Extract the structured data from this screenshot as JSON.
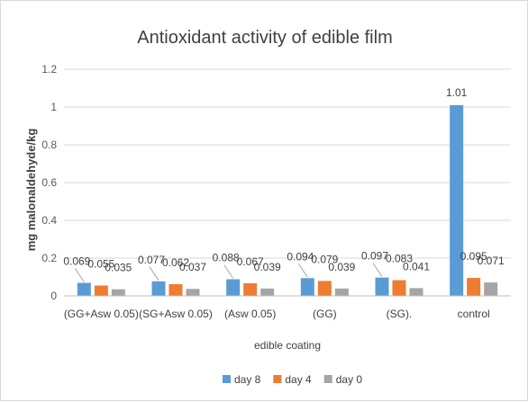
{
  "chart_data": {
    "type": "bar",
    "title": "Antioxidant activity of edible film",
    "xlabel": "edible coating",
    "ylabel": "mg malonaldehyde/kg",
    "categories": [
      "(GG+Asw 0.05)",
      "(SG+Asw 0.05)",
      "(Asw 0.05)",
      "(GG)",
      "(SG).",
      "control"
    ],
    "series": [
      {
        "name": "day 8",
        "color": "#5b9bd5",
        "values": [
          0.069,
          0.077,
          0.088,
          0.094,
          0.097,
          1.01
        ],
        "labels": [
          "0.069",
          "0.077",
          "0.088",
          "0.094",
          "0.097",
          "1.01"
        ]
      },
      {
        "name": "day 4",
        "color": "#ed7d31",
        "values": [
          0.055,
          0.062,
          0.067,
          0.079,
          0.083,
          0.095
        ],
        "labels": [
          "0.055",
          "0.062",
          "0.067",
          "0.079",
          "0.083",
          "0.095"
        ]
      },
      {
        "name": "day 0",
        "color": "#a5a5a5",
        "values": [
          0.035,
          0.037,
          0.039,
          0.039,
          0.041,
          0.071
        ],
        "labels": [
          "0.035",
          "0.037",
          "0.039",
          "0.039",
          "0.041",
          "0.071"
        ]
      }
    ],
    "ylim": [
      0,
      1.2
    ],
    "yticks": [
      0,
      0.2,
      0.4,
      0.6,
      0.8,
      1,
      1.2
    ],
    "ytick_labels": [
      "0",
      "0.2",
      "0.4",
      "0.6",
      "0.8",
      "1",
      "1.2"
    ],
    "grid": true,
    "legend_position": "bottom"
  }
}
